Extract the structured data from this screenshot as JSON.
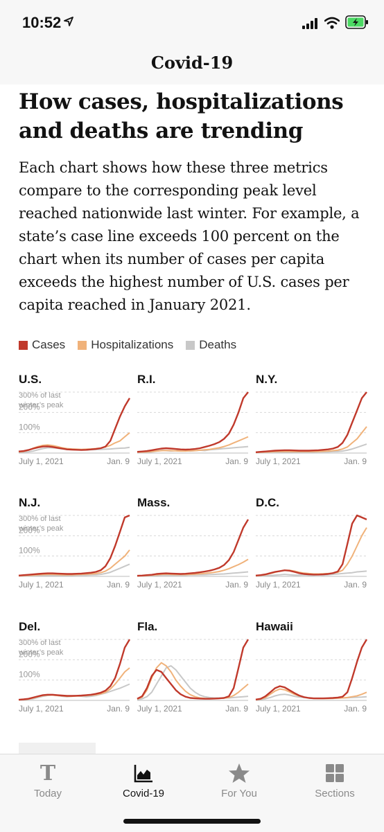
{
  "status_bar": {
    "time": "10:52"
  },
  "header": {
    "title": "Covid-19"
  },
  "article": {
    "headline": "How cases, hospitalizations and deaths are trending",
    "intro": "Each chart shows how these three metrics compare to the corresponding peak level reached nationwide last winter. For example, a state’s case line exceeds 100 percent on the chart when its number of cases per capita exceeds the highest number of U.S. cases per capita reached in January 2021."
  },
  "legend": [
    {
      "label": "Cases",
      "color": "#c0392b"
    },
    {
      "label": "Hospitalizations",
      "color": "#f0b27a"
    },
    {
      "label": "Deaths",
      "color": "#c8c8c8"
    }
  ],
  "chart_data": [
    {
      "type": "line",
      "title": "U.S.",
      "x_labels": [
        "July 1, 2021",
        "Jan. 9"
      ],
      "y_ticks": [
        "100%",
        "200%",
        "300% of last",
        "winter’s peak"
      ],
      "ylim": [
        0,
        300
      ],
      "series": [
        {
          "name": "Cases",
          "values": [
            8,
            10,
            15,
            22,
            28,
            32,
            33,
            30,
            26,
            22,
            18,
            17,
            16,
            15,
            16,
            18,
            20,
            24,
            32,
            60,
            120,
            180,
            230,
            270
          ]
        },
        {
          "name": "Hospitalizations",
          "values": [
            6,
            8,
            14,
            24,
            32,
            38,
            40,
            37,
            32,
            26,
            22,
            20,
            19,
            18,
            19,
            20,
            22,
            25,
            30,
            38,
            50,
            60,
            80,
            100
          ]
        },
        {
          "name": "Deaths",
          "values": [
            4,
            5,
            6,
            10,
            16,
            22,
            26,
            26,
            24,
            20,
            18,
            17,
            16,
            15,
            15,
            16,
            17,
            18,
            19,
            20,
            22,
            24,
            25,
            28
          ]
        }
      ]
    },
    {
      "type": "line",
      "title": "R.I.",
      "x_labels": [
        "July 1, 2021",
        "Jan. 9"
      ],
      "y_ticks": [],
      "ylim": [
        0,
        300
      ],
      "series": [
        {
          "name": "Cases",
          "values": [
            6,
            8,
            10,
            14,
            18,
            22,
            24,
            22,
            20,
            18,
            17,
            18,
            20,
            24,
            30,
            36,
            44,
            54,
            70,
            95,
            140,
            200,
            270,
            300
          ]
        },
        {
          "name": "Hospitalizations",
          "values": [
            4,
            5,
            6,
            8,
            10,
            12,
            13,
            12,
            11,
            10,
            10,
            11,
            12,
            14,
            16,
            18,
            22,
            26,
            32,
            40,
            50,
            60,
            70,
            80
          ]
        },
        {
          "name": "Deaths",
          "values": [
            2,
            3,
            4,
            6,
            10,
            14,
            12,
            10,
            12,
            14,
            12,
            10,
            12,
            14,
            12,
            16,
            18,
            20,
            22,
            24,
            26,
            28,
            30,
            32
          ]
        }
      ]
    },
    {
      "type": "line",
      "title": "N.Y.",
      "x_labels": [
        "July 1, 2021",
        "Jan. 9"
      ],
      "y_ticks": [],
      "ylim": [
        0,
        300
      ],
      "series": [
        {
          "name": "Cases",
          "values": [
            4,
            6,
            8,
            10,
            12,
            13,
            14,
            14,
            13,
            12,
            12,
            12,
            13,
            14,
            16,
            18,
            22,
            30,
            50,
            90,
            150,
            210,
            270,
            300
          ]
        },
        {
          "name": "Hospitalizations",
          "values": [
            3,
            4,
            5,
            6,
            7,
            8,
            8,
            8,
            7,
            7,
            7,
            7,
            8,
            8,
            9,
            10,
            12,
            14,
            20,
            30,
            50,
            70,
            100,
            130
          ]
        },
        {
          "name": "Deaths",
          "values": [
            2,
            2,
            3,
            3,
            4,
            4,
            5,
            5,
            5,
            5,
            5,
            5,
            5,
            6,
            6,
            6,
            7,
            8,
            10,
            14,
            20,
            28,
            36,
            44
          ]
        }
      ]
    },
    {
      "type": "line",
      "title": "N.J.",
      "x_labels": [
        "July 1, 2021",
        "Jan. 9"
      ],
      "y_ticks": [
        "100%",
        "200%",
        "300% of last",
        "winter’s peak"
      ],
      "ylim": [
        0,
        300
      ],
      "series": [
        {
          "name": "Cases",
          "values": [
            4,
            6,
            8,
            10,
            12,
            14,
            15,
            15,
            14,
            13,
            12,
            12,
            13,
            14,
            16,
            18,
            22,
            30,
            50,
            90,
            150,
            220,
            290,
            300
          ]
        },
        {
          "name": "Hospitalizations",
          "values": [
            3,
            4,
            5,
            6,
            8,
            9,
            10,
            10,
            9,
            8,
            8,
            8,
            9,
            10,
            11,
            12,
            14,
            18,
            26,
            40,
            60,
            80,
            100,
            130
          ]
        },
        {
          "name": "Deaths",
          "values": [
            2,
            2,
            3,
            3,
            4,
            5,
            5,
            5,
            5,
            5,
            5,
            5,
            6,
            6,
            6,
            7,
            8,
            10,
            14,
            20,
            30,
            40,
            50,
            60
          ]
        }
      ]
    },
    {
      "type": "line",
      "title": "Mass.",
      "x_labels": [
        "July 1, 2021",
        "Jan. 9"
      ],
      "y_ticks": [],
      "ylim": [
        0,
        300
      ],
      "series": [
        {
          "name": "Cases",
          "values": [
            3,
            4,
            6,
            8,
            12,
            14,
            15,
            14,
            13,
            12,
            13,
            15,
            17,
            20,
            24,
            28,
            34,
            42,
            56,
            80,
            120,
            180,
            240,
            280
          ]
        },
        {
          "name": "Hospitalizations",
          "values": [
            2,
            3,
            4,
            6,
            8,
            10,
            11,
            10,
            9,
            9,
            9,
            10,
            11,
            13,
            15,
            17,
            20,
            24,
            30,
            38,
            48,
            58,
            70,
            84
          ]
        },
        {
          "name": "Deaths",
          "values": [
            1,
            2,
            3,
            4,
            5,
            6,
            6,
            6,
            6,
            6,
            6,
            7,
            7,
            8,
            8,
            9,
            10,
            11,
            12,
            14,
            16,
            18,
            20,
            22
          ]
        }
      ]
    },
    {
      "type": "line",
      "title": "D.C.",
      "x_labels": [
        "July 1, 2021",
        "Jan. 9"
      ],
      "y_ticks": [],
      "ylim": [
        0,
        300
      ],
      "series": [
        {
          "name": "Cases",
          "values": [
            4,
            6,
            10,
            16,
            22,
            26,
            30,
            28,
            22,
            16,
            12,
            10,
            9,
            9,
            10,
            12,
            16,
            24,
            60,
            160,
            260,
            300,
            290,
            280
          ]
        },
        {
          "name": "Hospitalizations",
          "values": [
            3,
            5,
            8,
            14,
            20,
            26,
            30,
            30,
            26,
            20,
            16,
            14,
            12,
            12,
            13,
            14,
            16,
            20,
            30,
            60,
            100,
            150,
            200,
            240
          ]
        },
        {
          "name": "Deaths",
          "values": [
            2,
            2,
            3,
            4,
            6,
            8,
            10,
            8,
            6,
            6,
            8,
            6,
            6,
            8,
            6,
            8,
            10,
            12,
            14,
            16,
            18,
            22,
            24,
            26
          ]
        }
      ]
    },
    {
      "type": "line",
      "title": "Del.",
      "x_labels": [
        "July 1, 2021",
        "Jan. 9"
      ],
      "y_ticks": [
        "100%",
        "200%",
        "300% of last",
        "winter’s peak"
      ],
      "ylim": [
        0,
        300
      ],
      "series": [
        {
          "name": "Cases",
          "values": [
            3,
            5,
            8,
            14,
            20,
            26,
            28,
            28,
            26,
            24,
            22,
            22,
            23,
            24,
            26,
            28,
            32,
            38,
            48,
            70,
            110,
            180,
            260,
            300
          ]
        },
        {
          "name": "Hospitalizations",
          "values": [
            2,
            4,
            6,
            12,
            18,
            24,
            26,
            26,
            24,
            22,
            20,
            20,
            21,
            22,
            24,
            26,
            28,
            32,
            40,
            56,
            80,
            110,
            140,
            160
          ]
        },
        {
          "name": "Deaths",
          "values": [
            2,
            4,
            6,
            8,
            14,
            20,
            24,
            26,
            24,
            20,
            18,
            20,
            22,
            20,
            18,
            20,
            24,
            30,
            36,
            44,
            52,
            60,
            70,
            80
          ]
        }
      ]
    },
    {
      "type": "line",
      "title": "Fla.",
      "x_labels": [
        "July 1, 2021",
        "Jan. 9"
      ],
      "y_ticks": [],
      "ylim": [
        0,
        300
      ],
      "series": [
        {
          "name": "Cases",
          "values": [
            8,
            20,
            60,
            120,
            150,
            140,
            110,
            80,
            50,
            30,
            18,
            12,
            10,
            9,
            8,
            8,
            9,
            10,
            12,
            20,
            60,
            160,
            260,
            300
          ]
        },
        {
          "name": "Hospitalizations",
          "values": [
            6,
            16,
            50,
            110,
            160,
            185,
            170,
            140,
            100,
            70,
            45,
            28,
            18,
            12,
            10,
            9,
            9,
            10,
            11,
            14,
            24,
            40,
            60,
            80
          ]
        },
        {
          "name": "Deaths",
          "values": [
            4,
            8,
            18,
            40,
            80,
            120,
            160,
            170,
            150,
            120,
            90,
            60,
            40,
            26,
            18,
            14,
            12,
            12,
            12,
            12,
            14,
            16,
            18,
            20
          ]
        }
      ]
    },
    {
      "type": "line",
      "title": "Hawaii",
      "x_labels": [
        "July 1, 2021",
        "Jan. 9"
      ],
      "y_ticks": [],
      "ylim": [
        0,
        300
      ],
      "series": [
        {
          "name": "Cases",
          "values": [
            4,
            8,
            20,
            40,
            60,
            70,
            64,
            50,
            36,
            24,
            16,
            12,
            10,
            10,
            10,
            11,
            12,
            14,
            18,
            40,
            110,
            190,
            260,
            300
          ]
        },
        {
          "name": "Hospitalizations",
          "values": [
            3,
            6,
            14,
            30,
            46,
            56,
            52,
            42,
            30,
            22,
            16,
            12,
            10,
            9,
            9,
            9,
            10,
            11,
            12,
            14,
            18,
            22,
            30,
            40
          ]
        },
        {
          "name": "Deaths",
          "values": [
            2,
            4,
            8,
            14,
            22,
            28,
            30,
            26,
            20,
            16,
            14,
            12,
            10,
            10,
            10,
            10,
            10,
            11,
            12,
            13,
            14,
            15,
            16,
            18
          ]
        }
      ]
    }
  ],
  "tab_bar": {
    "tabs": [
      {
        "label": "Today",
        "icon": "nyt-logo-icon"
      },
      {
        "label": "Covid-19",
        "icon": "chart-icon",
        "active": true
      },
      {
        "label": "For You",
        "icon": "star-icon"
      },
      {
        "label": "Sections",
        "icon": "grid-icon"
      }
    ]
  }
}
